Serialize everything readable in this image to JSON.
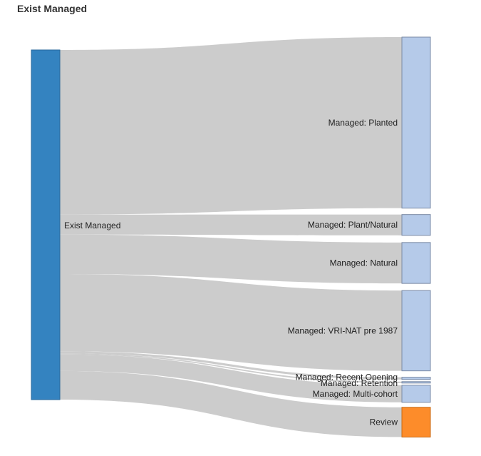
{
  "title": "Exist Managed",
  "colors": {
    "source": "#3483c0",
    "target": "#b5cae9",
    "review": "#fd8c2a",
    "link": "#cccccc",
    "node_stroke": "#7a8aa5"
  },
  "chart_data": {
    "type": "sankey",
    "title": "Exist Managed",
    "nodes": [
      {
        "name": "Exist Managed",
        "role": "source"
      },
      {
        "name": "Managed: Planted",
        "role": "target"
      },
      {
        "name": "Managed: Plant/Natural",
        "role": "target"
      },
      {
        "name": "Managed: Natural",
        "role": "target"
      },
      {
        "name": "Managed: VRI-NAT pre 1987",
        "role": "target"
      },
      {
        "name": "Managed: Recent Opening",
        "role": "target"
      },
      {
        "name": "Managed: Retention",
        "role": "target"
      },
      {
        "name": "Managed: Multi-cohort",
        "role": "target"
      },
      {
        "name": "Review",
        "role": "target"
      }
    ],
    "links": [
      {
        "source": "Exist Managed",
        "target": "Managed: Planted",
        "value": 230
      },
      {
        "source": "Exist Managed",
        "target": "Managed: Plant/Natural",
        "value": 28
      },
      {
        "source": "Exist Managed",
        "target": "Managed: Natural",
        "value": 55
      },
      {
        "source": "Exist Managed",
        "target": "Managed: VRI-NAT pre 1987",
        "value": 108
      },
      {
        "source": "Exist Managed",
        "target": "Managed: Recent Opening",
        "value": 3
      },
      {
        "source": "Exist Managed",
        "target": "Managed: Retention",
        "value": 1.5
      },
      {
        "source": "Exist Managed",
        "target": "Managed: Multi-cohort",
        "value": 23
      },
      {
        "source": "Exist Managed",
        "target": "Review",
        "value": 40
      }
    ]
  }
}
